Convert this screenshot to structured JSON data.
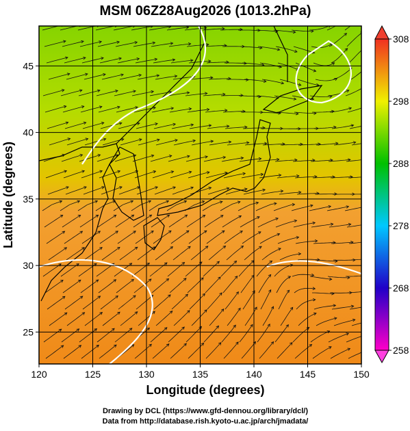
{
  "title": "MSM 06Z28Aug2026 (1013.2hPa)",
  "map": {
    "x_label": "Longitude (degrees)",
    "y_label": "Latitude  (degrees)",
    "xlim": [
      120,
      150
    ],
    "ylim": [
      22.6,
      48
    ],
    "xticks": [
      120,
      125,
      130,
      135,
      140,
      145,
      150
    ],
    "yticks": [
      25,
      30,
      35,
      40,
      45
    ]
  },
  "colorbar": {
    "lim": [
      258,
      308
    ],
    "ticks": [
      258,
      268,
      278,
      288,
      298,
      308
    ]
  },
  "footer": [
    "Drawing by DCL (https://www.gfd-dennou.org/library/dcl/)",
    "Data from http://database.rish.kyoto-u.ac.jp/arch/jmadata/"
  ]
}
